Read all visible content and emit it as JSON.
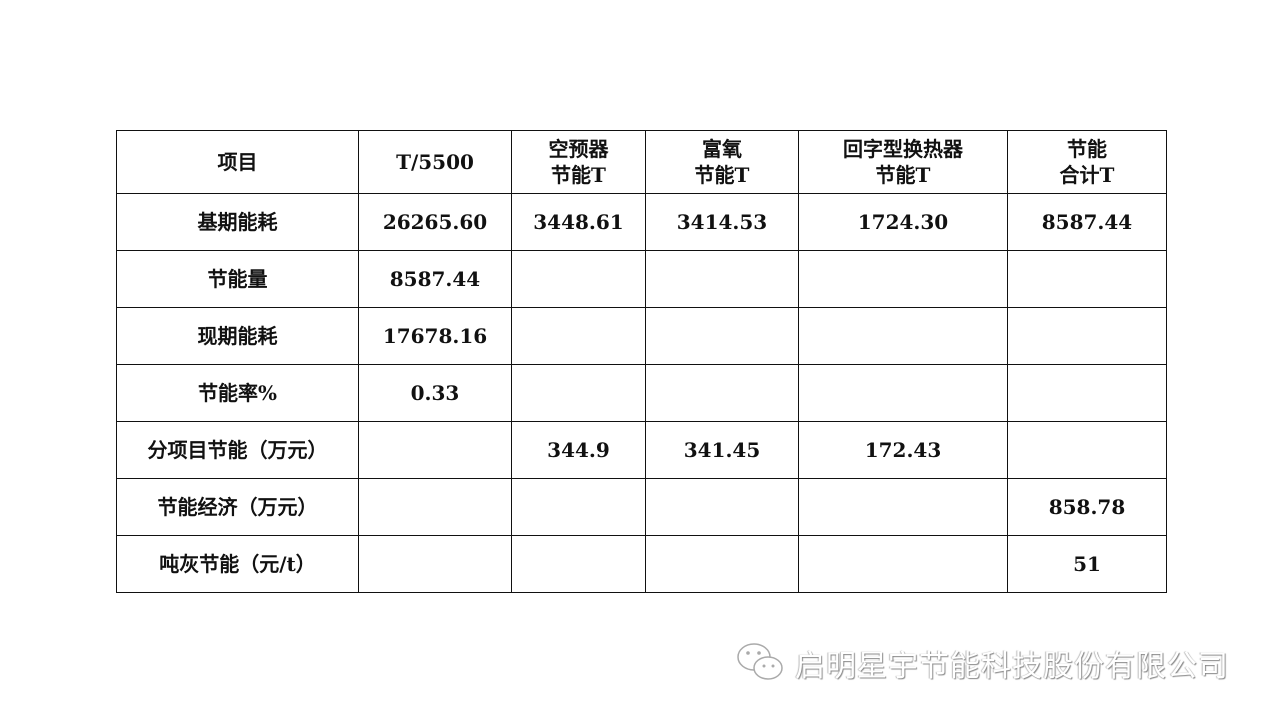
{
  "table": {
    "header": [
      "项目",
      "T/5500",
      "空预器\n节能T",
      "富氧\n节能T",
      "回字型换热器\n节能T",
      "节能\n合计T"
    ],
    "rows": [
      [
        "基期能耗",
        "26265.60",
        "3448.61",
        "3414.53",
        "1724.30",
        "8587.44"
      ],
      [
        "节能量",
        "8587.44",
        "",
        "",
        "",
        ""
      ],
      [
        "现期能耗",
        "17678.16",
        "",
        "",
        "",
        ""
      ],
      [
        "节能率%",
        "0.33",
        "",
        "",
        "",
        ""
      ],
      [
        "分项目节能（万元）",
        "",
        "344.9",
        "341.45",
        "172.43",
        ""
      ],
      [
        "节能经济（万元）",
        "",
        "",
        "",
        "",
        "858.78"
      ],
      [
        "吨灰节能（元/t）",
        "",
        "",
        "",
        "",
        "51"
      ]
    ]
  },
  "watermark": {
    "icon": "wechat-icon",
    "text": "启明星宇节能科技股份有限公司"
  }
}
